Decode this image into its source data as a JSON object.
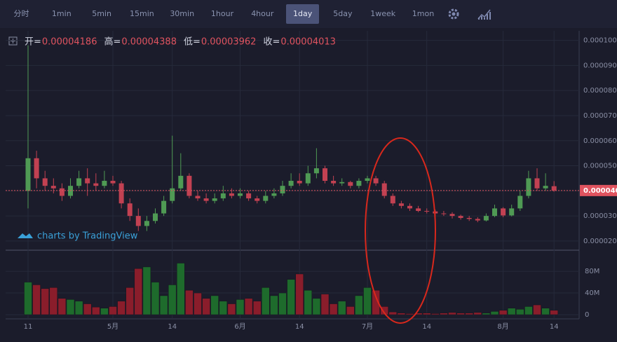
{
  "toolbar": {
    "items": [
      "分时",
      "1min",
      "5min",
      "15min",
      "30min",
      "1hour",
      "4hour",
      "1day",
      "5day",
      "1week",
      "1mon"
    ],
    "active_index": 7
  },
  "watermark": "charts by TradingView",
  "chart_data": {
    "type": "candlestick",
    "ohlc_labels": [
      "开=",
      "高=",
      "低=",
      "收="
    ],
    "categories": [
      "11",
      null,
      null,
      null,
      null,
      null,
      null,
      null,
      null,
      null,
      "5月",
      null,
      null,
      null,
      null,
      null,
      null,
      "14",
      null,
      null,
      null,
      null,
      null,
      null,
      null,
      "6月",
      null,
      null,
      null,
      null,
      null,
      null,
      "14",
      null,
      null,
      null,
      null,
      null,
      null,
      null,
      "7月",
      null,
      null,
      null,
      null,
      null,
      null,
      "14",
      null,
      null,
      null,
      null,
      null,
      null,
      null,
      null,
      "8月",
      null,
      null,
      null,
      null,
      null,
      "14"
    ],
    "open": [
      4e-05,
      5.3e-05,
      4.5e-05,
      4.2e-05,
      4.1e-05,
      3.8e-05,
      4.2e-05,
      4.5e-05,
      4.3e-05,
      4.2e-05,
      4.4e-05,
      4.3e-05,
      3.5e-05,
      3e-05,
      2.6e-05,
      2.8e-05,
      3.1e-05,
      3.6e-05,
      4.1e-05,
      4.6e-05,
      3.8e-05,
      3.7e-05,
      3.6e-05,
      3.7e-05,
      3.9e-05,
      3.8e-05,
      3.9e-05,
      3.7e-05,
      3.6e-05,
      3.8e-05,
      3.9e-05,
      4.2e-05,
      4.4e-05,
      4.3e-05,
      4.7e-05,
      4.9e-05,
      4.4e-05,
      4.3e-05,
      4.35e-05,
      4.2e-05,
      4.4e-05,
      4.5e-05,
      4.3e-05,
      3.8e-05,
      3.5e-05,
      3.4e-05,
      3.3e-05,
      3.2e-05,
      3.18e-05,
      3.1e-05,
      3.08e-05,
      3e-05,
      2.92e-05,
      2.88e-05,
      2.82e-05,
      3e-05,
      3.3e-05,
      3.02e-05,
      3.3e-05,
      3.8e-05,
      4.5e-05,
      4.1e-05,
      4.186e-05
    ],
    "high": [
      9.8e-05,
      5.6e-05,
      4.8e-05,
      4.5e-05,
      4.3e-05,
      4.5e-05,
      4.8e-05,
      4.9e-05,
      4.7e-05,
      4.8e-05,
      4.6e-05,
      4.4e-05,
      3.7e-05,
      3.3e-05,
      3e-05,
      3.3e-05,
      3.8e-05,
      6.2e-05,
      5.5e-05,
      4.7e-05,
      4e-05,
      3.9e-05,
      3.9e-05,
      4.2e-05,
      4.1e-05,
      4.1e-05,
      4e-05,
      3.8e-05,
      4e-05,
      4.1e-05,
      4.4e-05,
      4.7e-05,
      4.7e-05,
      5e-05,
      5.7e-05,
      5e-05,
      4.6e-05,
      4.5e-05,
      4.4e-05,
      4.5e-05,
      4.6e-05,
      4.6e-05,
      4.4e-05,
      3.9e-05,
      3.6e-05,
      3.5e-05,
      3.4e-05,
      3.3e-05,
      3.25e-05,
      3.2e-05,
      3.15e-05,
      3.05e-05,
      3e-05,
      2.95e-05,
      3.1e-05,
      3.45e-05,
      3.35e-05,
      3.45e-05,
      4e-05,
      4.8e-05,
      4.9e-05,
      4.7e-05,
      4.388e-05
    ],
    "low": [
      3.3e-05,
      4.1e-05,
      4e-05,
      3.9e-05,
      3.6e-05,
      3.7e-05,
      4.1e-05,
      3.8e-05,
      4e-05,
      4.1e-05,
      4.2e-05,
      3.3e-05,
      2.8e-05,
      2.4e-05,
      2.4e-05,
      2.7e-05,
      3e-05,
      3.5e-05,
      4e-05,
      3.7e-05,
      3.6e-05,
      3.5e-05,
      3.5e-05,
      3.6e-05,
      3.7e-05,
      3.7e-05,
      3.6e-05,
      3.5e-05,
      3.5e-05,
      3.7e-05,
      3.8e-05,
      4.1e-05,
      4.2e-05,
      4.2e-05,
      4.5e-05,
      4.3e-05,
      4.2e-05,
      4.2e-05,
      4.1e-05,
      4.1e-05,
      4.3e-05,
      4.2e-05,
      3.7e-05,
      3.4e-05,
      3.3e-05,
      3.2e-05,
      3.15e-05,
      3.1e-05,
      3e-05,
      3e-05,
      2.9e-05,
      2.85e-05,
      2.8e-05,
      2.75e-05,
      2.78e-05,
      2.95e-05,
      2.95e-05,
      2.98e-05,
      3.2e-05,
      3.7e-05,
      4e-05,
      4e-05,
      3.962e-05
    ],
    "close": [
      5.3e-05,
      4.5e-05,
      4.2e-05,
      4.1e-05,
      3.8e-05,
      4.2e-05,
      4.5e-05,
      4.3e-05,
      4.2e-05,
      4.4e-05,
      4.3e-05,
      3.5e-05,
      3e-05,
      2.6e-05,
      2.8e-05,
      3.1e-05,
      3.6e-05,
      4.1e-05,
      4.6e-05,
      3.8e-05,
      3.7e-05,
      3.6e-05,
      3.7e-05,
      3.9e-05,
      3.8e-05,
      3.9e-05,
      3.7e-05,
      3.6e-05,
      3.8e-05,
      3.9e-05,
      4.2e-05,
      4.4e-05,
      4.3e-05,
      4.7e-05,
      4.9e-05,
      4.4e-05,
      4.3e-05,
      4.35e-05,
      4.2e-05,
      4.4e-05,
      4.5e-05,
      4.3e-05,
      3.8e-05,
      3.5e-05,
      3.4e-05,
      3.3e-05,
      3.2e-05,
      3.18e-05,
      3.1e-05,
      3.08e-05,
      3e-05,
      2.92e-05,
      2.88e-05,
      2.82e-05,
      3e-05,
      3.3e-05,
      3.02e-05,
      3.3e-05,
      3.8e-05,
      4.5e-05,
      4.1e-05,
      4.2e-05,
      4.013e-05
    ],
    "volume": [
      60,
      55,
      48,
      50,
      30,
      28,
      25,
      20,
      14,
      12,
      15,
      25,
      50,
      85,
      88,
      60,
      35,
      55,
      95,
      45,
      40,
      30,
      35,
      25,
      20,
      28,
      30,
      25,
      50,
      35,
      40,
      65,
      75,
      45,
      30,
      38,
      20,
      25,
      15,
      35,
      50,
      45,
      15,
      5,
      3,
      2,
      3,
      3,
      2,
      3,
      4,
      3,
      3,
      4,
      3,
      6,
      8,
      12,
      10,
      15,
      18,
      12,
      8
    ],
    "up_color": "#4f9a54",
    "down_color": "#c24152",
    "volume_up_color": "#1e6b2c",
    "volume_down_color": "#8a1d2b",
    "ylim": [
      1.69e-05,
      0.0001038
    ],
    "yticks": [
      {
        "value": 2e-05,
        "label": "0.0000200"
      },
      {
        "value": 3e-05,
        "label": "0.0000300"
      },
      {
        "value": 4e-05,
        "label": "0.0000400"
      },
      {
        "value": 5e-05,
        "label": "0.0000500"
      },
      {
        "value": 6e-05,
        "label": "0.0000600"
      },
      {
        "value": 7e-05,
        "label": "0.0000700"
      },
      {
        "value": 8e-05,
        "label": "0.0000800"
      },
      {
        "value": 9e-05,
        "label": "0.0000900"
      },
      {
        "value": 0.0001,
        "label": "0.0001000"
      }
    ],
    "volume_ylim": [
      0,
      115
    ],
    "volume_yticks": [
      0,
      {
        "value": 40,
        "label": "40M"
      },
      {
        "value": 80,
        "label": "80M"
      }
    ],
    "price_label": {
      "value": 4.013e-05,
      "label": "0.000040"
    },
    "grid": true
  }
}
